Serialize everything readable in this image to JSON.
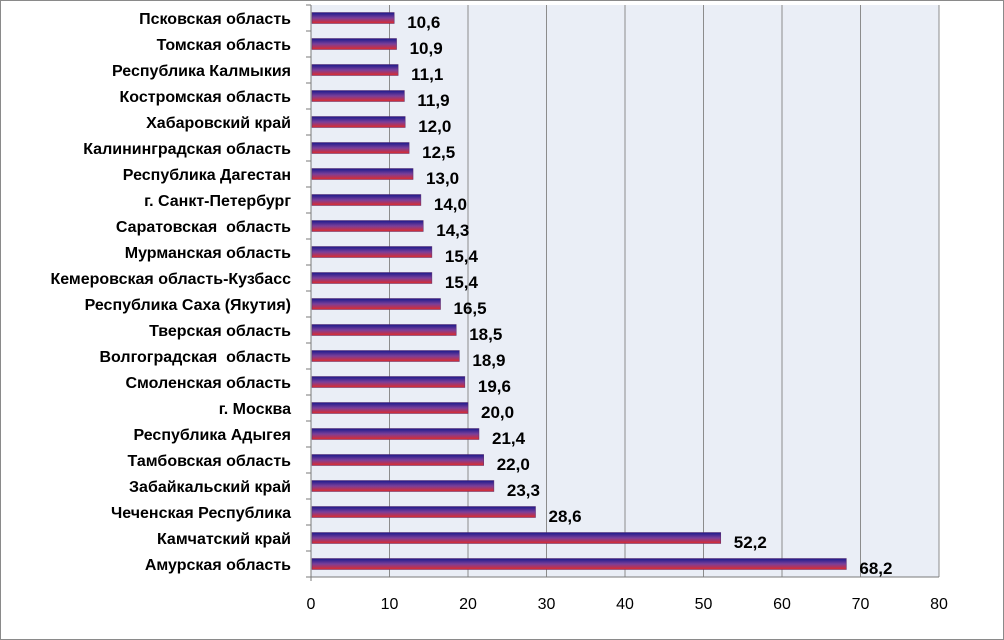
{
  "chart_data": {
    "type": "bar",
    "orientation": "horizontal",
    "title": "",
    "xlabel": "",
    "ylabel": "",
    "categories": [
      "Псковская область",
      "Томская область",
      "Республика Калмыкия",
      "Костромская область",
      "Хабаровский край",
      "Калининградская область",
      "Республика Дагестан",
      "г. Санкт-Петербург",
      "Саратовская  область",
      "Мурманская область",
      "Кемеровская область-Кузбасс",
      "Республика Саха (Якутия)",
      "Тверская область",
      "Волгоградская  область",
      "Смоленская область",
      "г. Москва",
      "Республика Адыгея",
      "Тамбовская область",
      "Забайкальский край",
      "Чеченская Республика",
      "Камчатский край",
      "Амурская область"
    ],
    "values": [
      10.6,
      10.9,
      11.1,
      11.9,
      12.0,
      12.5,
      13.0,
      14.0,
      14.3,
      15.4,
      15.4,
      16.5,
      18.5,
      18.9,
      19.6,
      20.0,
      21.4,
      22.0,
      23.3,
      28.6,
      52.2,
      68.2
    ],
    "value_labels": [
      "10,6",
      "10,9",
      "11,1",
      "11,9",
      "12,0",
      "12,5",
      "13,0",
      "14,0",
      "14,3",
      "15,4",
      "15,4",
      "16,5",
      "18,5",
      "18,9",
      "19,6",
      "20,0",
      "21,4",
      "22,0",
      "23,3",
      "28,6",
      "52,2",
      "68,2"
    ],
    "xlim": [
      0,
      80
    ],
    "xticks": [
      0,
      10,
      20,
      30,
      40,
      50,
      60,
      70,
      80
    ],
    "grid": "vertical",
    "legend": "none",
    "colors": {
      "plot_background": "#eaeef6",
      "gridline": "#8c8c8c",
      "bar_top": "#1a1a8c",
      "bar_mid": "#7a3f9a",
      "bar_bottom": "#e02a2a"
    }
  }
}
